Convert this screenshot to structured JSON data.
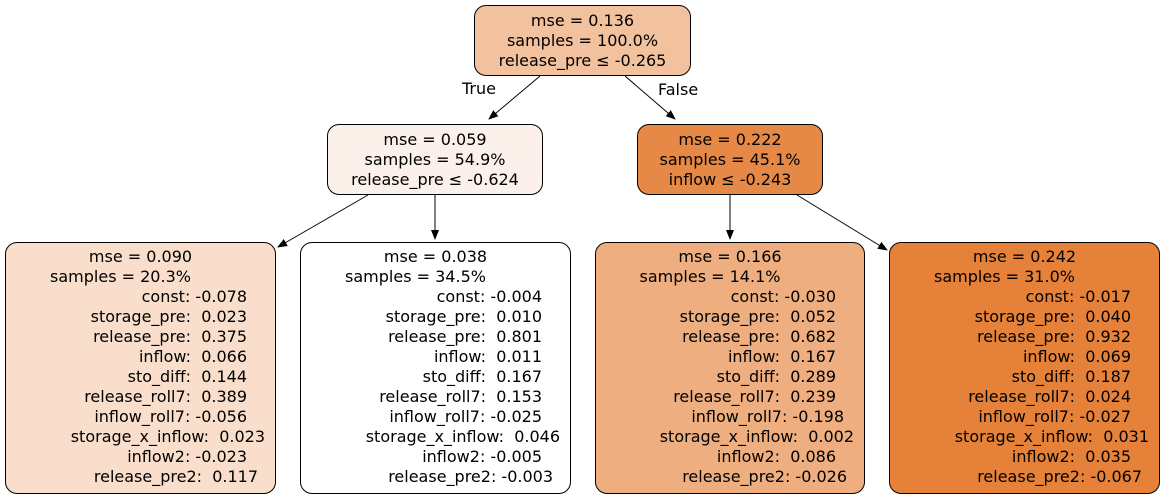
{
  "edge_labels": {
    "true": "True",
    "false": "False"
  },
  "colors": {
    "root": "#f2c19e",
    "n1": "#fcf0eb",
    "n2": "#e78946",
    "leaf1": "#f8decb",
    "leaf2": "#ffffff",
    "leaf3": "#eeae80",
    "leaf4": "#e58139"
  },
  "nodes": {
    "root": {
      "lines": [
        "mse = 0.136",
        "samples = 100.0%",
        "release_pre ≤ -0.265"
      ]
    },
    "n1": {
      "lines": [
        "mse = 0.059",
        "samples = 54.9%",
        "release_pre ≤ -0.624"
      ]
    },
    "n2": {
      "lines": [
        "mse = 0.222",
        "samples = 45.1%",
        "inflow ≤ -0.243"
      ]
    },
    "leaf1": {
      "head": [
        "mse = 0.090",
        "samples = 20.3%"
      ],
      "rows": [
        "const: -0.078",
        "storage_pre:  0.023",
        "release_pre:  0.375",
        "inflow:  0.066",
        "sto_diff:  0.144",
        "release_roll7:  0.389",
        "inflow_roll7: -0.056",
        "storage_x_inflow:  0.023",
        "inflow2: -0.023",
        "release_pre2:  0.117"
      ]
    },
    "leaf2": {
      "head": [
        "mse = 0.038",
        "samples = 34.5%"
      ],
      "rows": [
        "const: -0.004",
        "storage_pre:  0.010",
        "release_pre:  0.801",
        "inflow:  0.011",
        "sto_diff:  0.167",
        "release_roll7:  0.153",
        "inflow_roll7: -0.025",
        "storage_x_inflow:  0.046",
        "inflow2: -0.005",
        "release_pre2: -0.003"
      ]
    },
    "leaf3": {
      "head": [
        "mse = 0.166",
        "samples = 14.1%"
      ],
      "rows": [
        "const: -0.030",
        "storage_pre:  0.052",
        "release_pre:  0.682",
        "inflow:  0.167",
        "sto_diff:  0.289",
        "release_roll7:  0.239",
        "inflow_roll7: -0.198",
        "storage_x_inflow:  0.002",
        "inflow2:  0.086",
        "release_pre2: -0.026"
      ]
    },
    "leaf4": {
      "head": [
        "mse = 0.242",
        "samples = 31.0%"
      ],
      "rows": [
        "const: -0.017",
        "storage_pre:  0.040",
        "release_pre:  0.932",
        "inflow:  0.069",
        "sto_diff:  0.187",
        "release_roll7:  0.024",
        "inflow_roll7: -0.027",
        "storage_x_inflow:  0.031",
        "inflow2:  0.035",
        "release_pre2: -0.067"
      ]
    }
  }
}
